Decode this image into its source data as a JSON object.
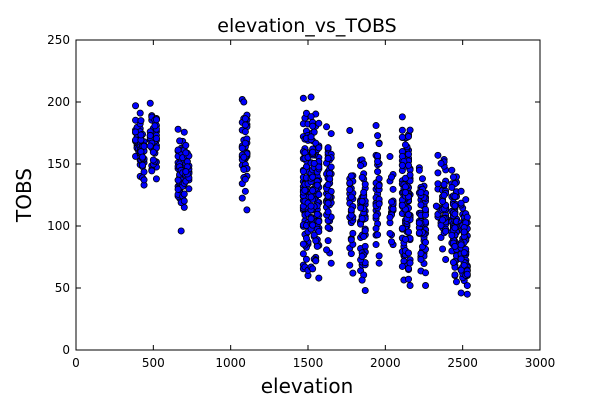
{
  "chart_data": {
    "type": "scatter",
    "title": "elevation_vs_TOBS",
    "xlabel": "elevation",
    "ylabel": "TOBS",
    "xlim": [
      0,
      3000
    ],
    "ylim": [
      0,
      250
    ],
    "xticks": [
      0,
      500,
      1000,
      1500,
      2000,
      2500,
      3000
    ],
    "yticks": [
      0,
      50,
      100,
      150,
      200,
      250
    ],
    "grid": false,
    "marker_color": "#0000ff",
    "marker_edge_color": "#000000",
    "clusters": [
      {
        "x": 400,
        "xs": [
          385,
          395,
          405,
          415
        ],
        "ymin": 140,
        "ymax": 197,
        "n": 40
      },
      {
        "x": 430,
        "xs": [
          420,
          430,
          440
        ],
        "ymin": 133,
        "ymax": 185,
        "n": 28
      },
      {
        "x": 500,
        "xs": [
          480,
          490,
          500,
          510,
          520
        ],
        "ymin": 138,
        "ymax": 199,
        "n": 50
      },
      {
        "x": 680,
        "xs": [
          660,
          670,
          680,
          690,
          700
        ],
        "ymin": 115,
        "ymax": 178,
        "n": 55
      },
      {
        "x": 720,
        "xs": [
          710,
          720,
          730
        ],
        "ymin": 130,
        "ymax": 165,
        "n": 20
      },
      {
        "x": 1090,
        "xs": [
          1075,
          1085,
          1095,
          1105
        ],
        "ymin": 113,
        "ymax": 202,
        "n": 45
      },
      {
        "x": 1490,
        "xs": [
          1470,
          1480,
          1490,
          1500
        ],
        "ymin": 60,
        "ymax": 203,
        "n": 90
      },
      {
        "x": 1550,
        "xs": [
          1520,
          1530,
          1540,
          1550,
          1560,
          1570
        ],
        "ymin": 58,
        "ymax": 204,
        "n": 110
      },
      {
        "x": 1640,
        "xs": [
          1620,
          1630,
          1640,
          1650
        ],
        "ymin": 70,
        "ymax": 180,
        "n": 55
      },
      {
        "x": 1780,
        "xs": [
          1770,
          1780,
          1790
        ],
        "ymin": 62,
        "ymax": 177,
        "n": 30
      },
      {
        "x": 1850,
        "xs": [
          1840,
          1850,
          1860,
          1870
        ],
        "ymin": 48,
        "ymax": 165,
        "n": 60
      },
      {
        "x": 1950,
        "xs": [
          1940,
          1950,
          1960
        ],
        "ymin": 70,
        "ymax": 181,
        "n": 40
      },
      {
        "x": 2040,
        "xs": [
          2030,
          2040,
          2050
        ],
        "ymin": 85,
        "ymax": 156,
        "n": 20
      },
      {
        "x": 2140,
        "xs": [
          2110,
          2120,
          2130,
          2140,
          2150,
          2160
        ],
        "ymin": 52,
        "ymax": 188,
        "n": 120
      },
      {
        "x": 2240,
        "xs": [
          2220,
          2230,
          2240,
          2250,
          2260
        ],
        "ymin": 52,
        "ymax": 147,
        "n": 70
      },
      {
        "x": 2370,
        "xs": [
          2340,
          2360,
          2370,
          2380,
          2390
        ],
        "ymin": 73,
        "ymax": 157,
        "n": 50
      },
      {
        "x": 2450,
        "xs": [
          2430,
          2440,
          2450,
          2460
        ],
        "ymin": 55,
        "ymax": 145,
        "n": 70
      },
      {
        "x": 2520,
        "xs": [
          2490,
          2500,
          2510,
          2520,
          2530
        ],
        "ymin": 45,
        "ymax": 128,
        "n": 70
      }
    ],
    "outliers": [
      {
        "x": 680,
        "y": 96
      },
      {
        "x": 2490,
        "y": 46
      },
      {
        "x": 1780,
        "y": 113
      },
      {
        "x": 2330,
        "y": 116
      }
    ]
  }
}
